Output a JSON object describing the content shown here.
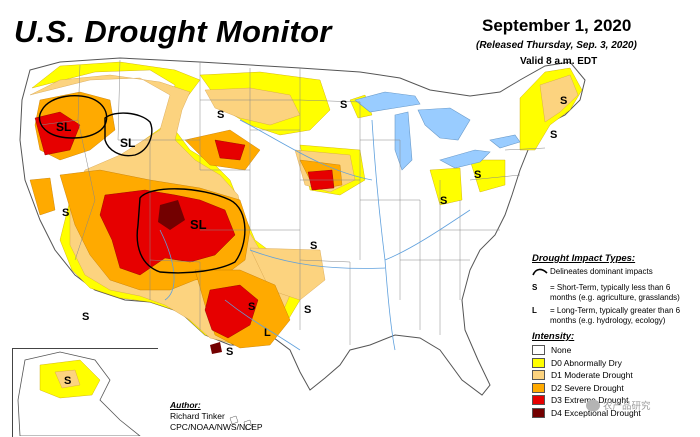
{
  "header": {
    "title": "U.S. Drought Monitor",
    "date": "September 1, 2020",
    "released": "(Released Thursday, Sep. 3, 2020)",
    "valid": "Valid 8 a.m. EDT"
  },
  "legend": {
    "impact_types_title": "Drought Impact Types:",
    "delineates_text": "Delineates dominant impacts",
    "short_term_key": "S",
    "short_term_text": "= Short-Term, typically less than 6 months (e.g. agriculture, grasslands)",
    "long_term_key": "L",
    "long_term_text": "= Long-Term, typically greater than 6 months (e.g. hydrology, ecology)",
    "intensity_title": "Intensity:",
    "intensity": [
      {
        "label": "None",
        "color": "#ffffff"
      },
      {
        "label": "D0 Abnormally Dry",
        "color": "#ffff00"
      },
      {
        "label": "D1 Moderate Drought",
        "color": "#fcd37f"
      },
      {
        "label": "D2 Severe Drought",
        "color": "#ffaa00"
      },
      {
        "label": "D3 Extreme Drought",
        "color": "#e60000"
      },
      {
        "label": "D4 Exceptional Drought",
        "color": "#730000"
      }
    ]
  },
  "author": {
    "label": "Author:",
    "name": "Richard Tinker",
    "org": "CPC/NOAA/NWS/NCEP"
  },
  "watermark": {
    "text": "农产品研究"
  },
  "map_labels": {
    "sl_oregon": "SL",
    "sl_idaho": "SL",
    "sl_four_corners": "SL",
    "s": "S",
    "l": "L"
  },
  "colors": {
    "water": "#99ccff",
    "border": "#555555",
    "state_line": "#888888"
  }
}
